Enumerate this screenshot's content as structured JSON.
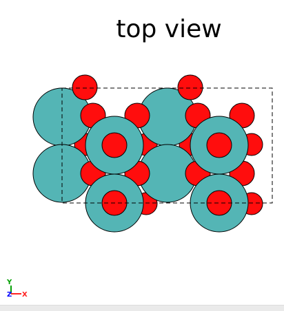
{
  "view": {
    "title": "top view"
  },
  "axes": {
    "y_label": "Y",
    "z_label": "Z",
    "x_label": "X"
  },
  "colors": {
    "large_atom": "#54b5b5",
    "oxygen_atom": "#ff0d0d",
    "outline": "#000000",
    "cell_border": "#000000",
    "axis_x": "#ff2020",
    "axis_y": "#00a000",
    "axis_z": "#0000ff"
  }
}
